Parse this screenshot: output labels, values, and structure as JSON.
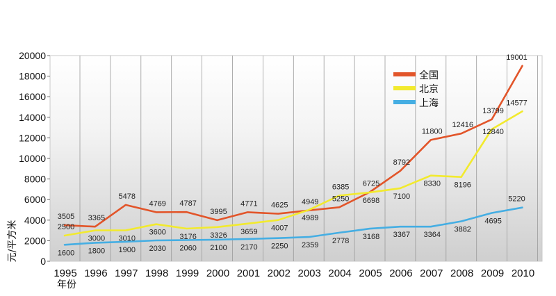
{
  "chart_data": {
    "type": "line",
    "title": "",
    "xlabel": "年份",
    "ylabel": "元/平方米",
    "x": [
      "1995",
      "1996",
      "1997",
      "1998",
      "1999",
      "2000",
      "2001",
      "2002",
      "2003",
      "2004",
      "2005",
      "2006",
      "2007",
      "2008",
      "2009",
      "2010"
    ],
    "ylim": [
      0,
      20000
    ],
    "yticks": [
      0,
      2000,
      4000,
      6000,
      8000,
      10000,
      12000,
      14000,
      16000,
      18000,
      20000
    ],
    "grid": "vertical",
    "legend": "top-right",
    "series": [
      {
        "name": "全国",
        "color": "#e2552a",
        "values": [
          3505,
          3365,
          5478,
          4769,
          4787,
          3995,
          4771,
          4625,
          4949,
          5250,
          6725,
          8792,
          11800,
          12416,
          13799,
          19001
        ]
      },
      {
        "name": "北京",
        "color": "#f2ea2e",
        "values": [
          2500,
          3000,
          3010,
          3600,
          3176,
          3326,
          3659,
          4007,
          4989,
          6385,
          6698,
          7100,
          8330,
          8196,
          12840,
          14577
        ]
      },
      {
        "name": "上海",
        "color": "#45aee3",
        "values": [
          1600,
          1800,
          1900,
          2030,
          2060,
          2100,
          2170,
          2250,
          2359,
          2778,
          3168,
          3367,
          3364,
          3882,
          4695,
          5220
        ]
      }
    ]
  }
}
